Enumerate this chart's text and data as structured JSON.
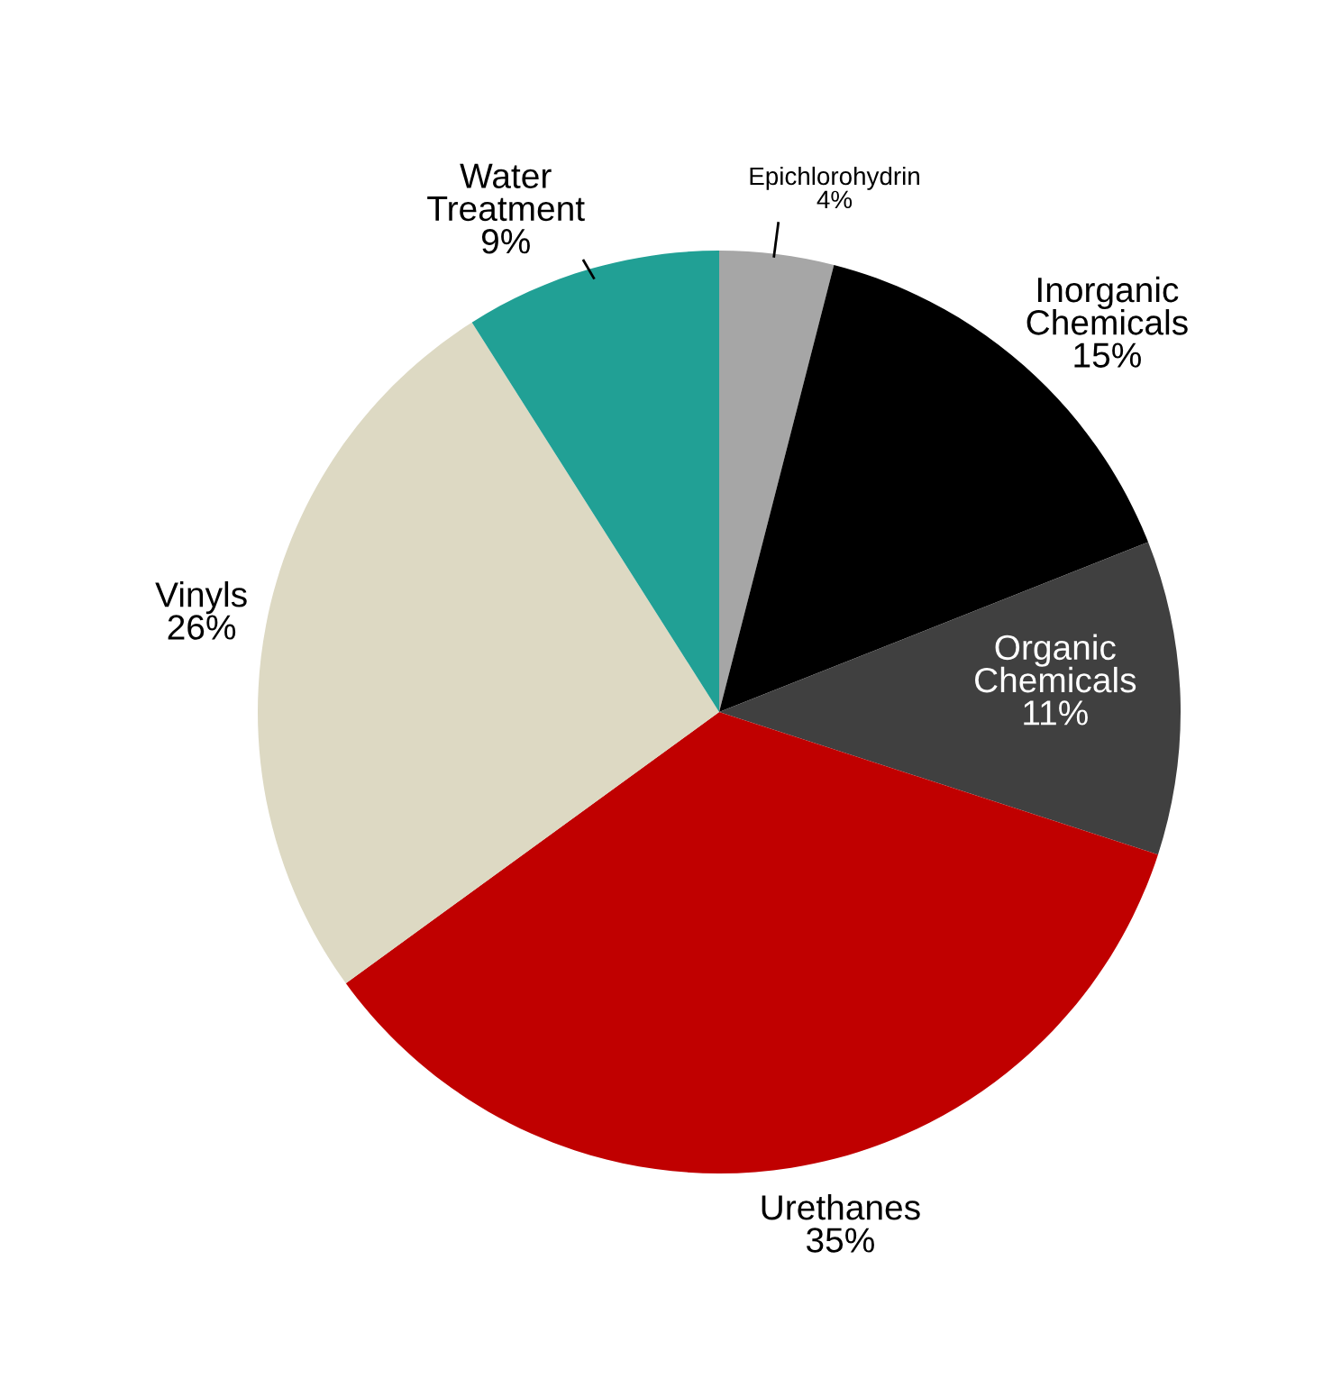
{
  "chart_data": {
    "type": "pie",
    "categories": [
      "Epichlorohydrin",
      "Inorganic Chemicals",
      "Organic Chemicals",
      "Urethanes",
      "Vinyls",
      "Water Treatment"
    ],
    "values": [
      4,
      15,
      11,
      35,
      26,
      9
    ],
    "colors": [
      "#a6a6a6",
      "#000000",
      "#404040",
      "#c00000",
      "#ddd9c3",
      "#21a095"
    ],
    "value_labels": [
      "4%",
      "15%",
      "11%",
      "35%",
      "26%",
      "9%"
    ],
    "legend": false
  }
}
